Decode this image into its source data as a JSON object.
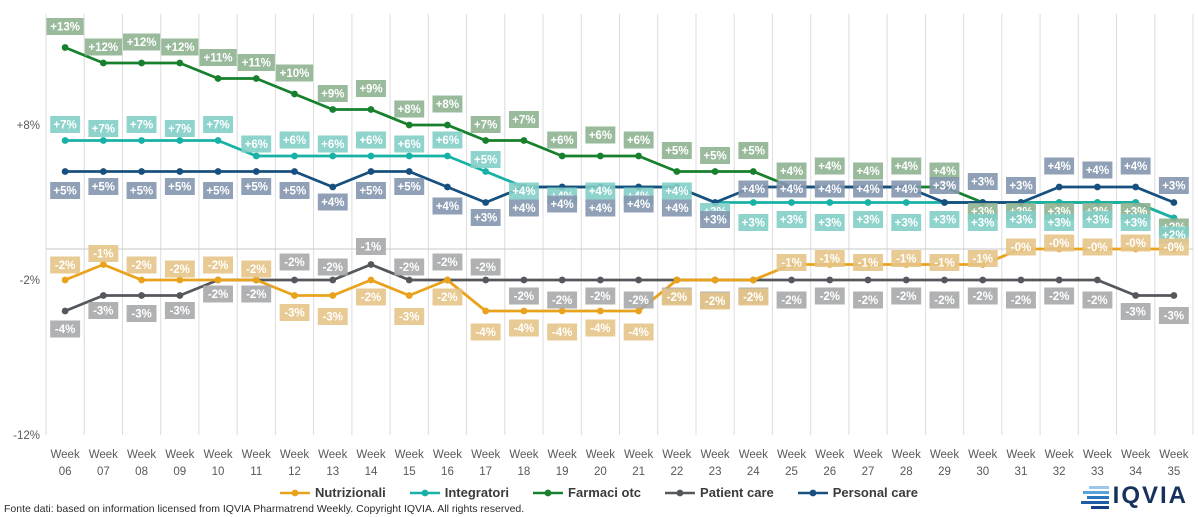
{
  "chart_data": {
    "type": "line",
    "title": "",
    "x_prefix": "Week",
    "categories": [
      "06",
      "07",
      "08",
      "09",
      "10",
      "11",
      "12",
      "13",
      "14",
      "15",
      "16",
      "17",
      "18",
      "19",
      "20",
      "21",
      "22",
      "23",
      "24",
      "25",
      "26",
      "27",
      "28",
      "29",
      "30",
      "31",
      "32",
      "33",
      "34",
      "35"
    ],
    "ylim": [
      -12,
      14
    ],
    "yticks": [
      {
        "label": "+8%",
        "value": 8
      },
      {
        "label": "-2%",
        "value": -2
      },
      {
        "label": "-12%",
        "value": -12
      }
    ],
    "grid": "vertical",
    "zero_line": true,
    "legend_position": "bottom",
    "series": [
      {
        "name": "Nutrizionali",
        "color": "#E9A21B",
        "label_bg": "#E6C488",
        "values": [
          -2,
          -1,
          -2,
          -2,
          -2,
          -2,
          -3,
          -3,
          -2,
          -3,
          -2,
          -4,
          -4,
          -4,
          -4,
          -4,
          -2,
          -2,
          -2,
          -1,
          -1,
          -1,
          -1,
          -1,
          -1,
          0,
          0,
          0,
          0,
          0
        ],
        "labels": [
          "-2%",
          "-1%",
          "-2%",
          "-2%",
          "-2%",
          "-2%",
          "-3%",
          "-3%",
          "-2%",
          "-3%",
          "-2%",
          "-4%",
          "-4%",
          "-4%",
          "-4%",
          "-4%",
          "-2%",
          "-2%",
          "-2%",
          "-1%",
          "-1%",
          "-1%",
          "-1%",
          "-1%",
          "-1%",
          "-0%",
          "-0%",
          "-0%",
          "-0%",
          "-0%"
        ]
      },
      {
        "name": "Integratori",
        "color": "#18B1A5",
        "label_bg": "#82CEC7",
        "values": [
          7,
          7,
          7,
          7,
          7,
          6,
          6,
          6,
          6,
          6,
          6,
          5,
          4,
          4,
          4,
          4,
          4,
          3,
          3,
          3,
          3,
          3,
          3,
          3,
          3,
          3,
          3,
          3,
          3,
          2
        ],
        "labels": [
          "+7%",
          "+7%",
          "+7%",
          "+7%",
          "+7%",
          "+6%",
          "+6%",
          "+6%",
          "+6%",
          "+6%",
          "+6%",
          "+5%",
          "+4%",
          "+4%",
          "+4%",
          "+4%",
          "+4%",
          "+3%",
          "+3%",
          "+3%",
          "+3%",
          "+3%",
          "+3%",
          "+3%",
          "+3%",
          "+3%",
          "+3%",
          "+3%",
          "+3%",
          "+2%"
        ]
      },
      {
        "name": "Farmaci otc",
        "color": "#17802D",
        "label_bg": "#8FB291",
        "values": [
          13,
          12,
          12,
          12,
          11,
          11,
          10,
          9,
          9,
          8,
          8,
          7,
          7,
          6,
          6,
          6,
          5,
          5,
          5,
          4,
          4,
          4,
          4,
          4,
          3,
          3,
          3,
          3,
          3,
          2
        ],
        "labels": [
          "+13%",
          "+12%",
          "+12%",
          "+12%",
          "+11%",
          "+11%",
          "+10%",
          "+9%",
          "+9%",
          "+8%",
          "+8%",
          "+7%",
          "+7%",
          "+6%",
          "+6%",
          "+6%",
          "+5%",
          "+5%",
          "+5%",
          "+4%",
          "+4%",
          "+4%",
          "+4%",
          "+4%",
          "+3%",
          "+3%",
          "+3%",
          "+3%",
          "+3%",
          "+2%"
        ]
      },
      {
        "name": "Patient care",
        "color": "#54585C",
        "label_bg": "#A7A9AB",
        "values": [
          -4,
          -3,
          -3,
          -3,
          -2,
          -2,
          -2,
          -2,
          -1,
          -2,
          -2,
          -2,
          -2,
          -2,
          -2,
          -2,
          -2,
          -2,
          -2,
          -2,
          -2,
          -2,
          -2,
          -2,
          -2,
          -2,
          -2,
          -2,
          -3,
          -3
        ],
        "labels": [
          "-4%",
          "-3%",
          "-3%",
          "-3%",
          "-2%",
          "-2%",
          "-2%",
          "-2%",
          "-1%",
          "-2%",
          "-2%",
          "-2%",
          "-2%",
          "-2%",
          "-2%",
          "-2%",
          "-2%",
          "-2%",
          "-2%",
          "-2%",
          "-2%",
          "-2%",
          "-2%",
          "-2%",
          "-2%",
          "-2%",
          "-2%",
          "-2%",
          "-3%",
          "-3%"
        ]
      },
      {
        "name": "Personal care",
        "color": "#17507E",
        "label_bg": "#8496AF",
        "values": [
          5,
          5,
          5,
          5,
          5,
          5,
          5,
          4,
          5,
          5,
          4,
          3,
          4,
          4,
          4,
          4,
          4,
          3,
          4,
          4,
          4,
          4,
          4,
          3,
          3,
          3,
          4,
          4,
          4,
          3
        ],
        "labels": [
          "+5%",
          "+5%",
          "+5%",
          "+5%",
          "+5%",
          "+5%",
          "+5%",
          "+4%",
          "+5%",
          "+5%",
          "+4%",
          "+3%",
          "+4%",
          "+4%",
          "+4%",
          "+4%",
          "+4%",
          "+3%",
          "+4%",
          "+4%",
          "+4%",
          "+4%",
          "+4%",
          "+3%",
          "+3%",
          "+3%",
          "+4%",
          "+4%",
          "+4%",
          "+3%"
        ]
      }
    ]
  },
  "footer": {
    "source": "Fonte dati: based on information licensed from IQVIA Pharmatrend Weekly. Copyright IQVIA. All rights reserved."
  },
  "logo": {
    "text": "IQVIA"
  }
}
